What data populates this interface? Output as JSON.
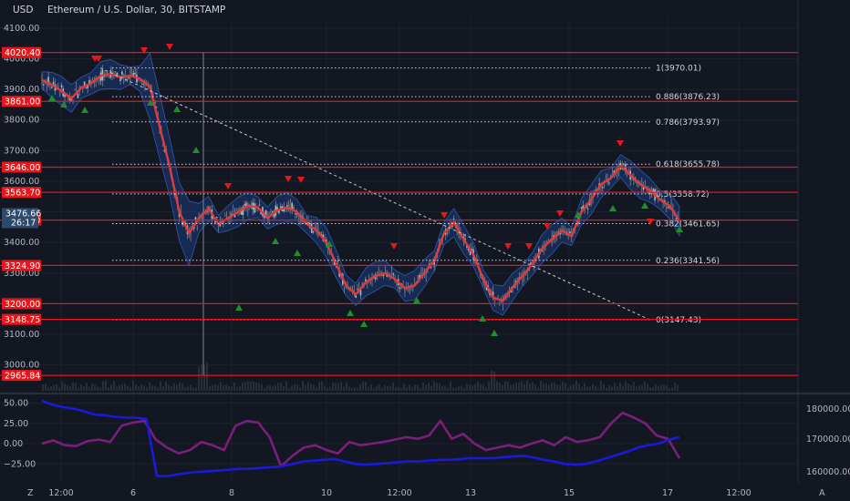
{
  "header": {
    "currency": "USD",
    "title": "Ethereum / U.S. Dollar, 30, BITSTAMP"
  },
  "chart_data": [
    {
      "type": "candlestick",
      "title": "Ethereum / U.S. Dollar, 30, BITSTAMP",
      "ylabel": "USD",
      "ylim": [
        2950,
        4120
      ],
      "y_ticks": [
        3000,
        3100,
        3200,
        3300,
        3400,
        3500,
        3600,
        3700,
        3800,
        3900,
        4000,
        4100
      ],
      "y_tick_labels": [
        "3000.00",
        "3100.00",
        "3200.00",
        "3300.00",
        "3400.00",
        "3500.00",
        "3600.00",
        "3700.00",
        "3800.00",
        "3900.00",
        "4000.00",
        "4100.00"
      ],
      "x_tick_labels": [
        "12:00",
        "6",
        "8",
        "10",
        "12:00",
        "13",
        "15",
        "17",
        "12:00"
      ],
      "current_price": {
        "value": "3476.66",
        "countdown": "26:17"
      },
      "horizontal_levels": [
        {
          "label": "4020.40",
          "value": 4020.4
        },
        {
          "label": "3861.00",
          "value": 3861.0
        },
        {
          "label": "3646.00",
          "value": 3646.0
        },
        {
          "label": "3563.70",
          "value": 3563.7
        },
        {
          "label": "3473.00",
          "value": 3473.0
        },
        {
          "label": "3324.90",
          "value": 3324.9
        },
        {
          "label": "3200.00",
          "value": 3200.0
        },
        {
          "label": "3148.75",
          "value": 3148.75
        },
        {
          "label": "2965.84",
          "value": 2965.84
        }
      ],
      "fibonacci": [
        {
          "label": "1(3970.01)",
          "value": 3970.01
        },
        {
          "label": "0.886(3876.23)",
          "value": 3876.23
        },
        {
          "label": "0.786(3793.97)",
          "value": 3793.97
        },
        {
          "label": "0.618(3655.78)",
          "value": 3655.78
        },
        {
          "label": "0.5(3558.72)",
          "value": 3558.72
        },
        {
          "label": "0.382(3461.65)",
          "value": 3461.65
        },
        {
          "label": "0.236(3341.56)",
          "value": 3341.56
        },
        {
          "label": "0(3147.43)",
          "value": 3147.43
        }
      ],
      "price_path": [
        3930,
        3915,
        3895,
        3870,
        3905,
        3920,
        3945,
        3950,
        3940,
        3945,
        3935,
        3910,
        3780,
        3650,
        3500,
        3430,
        3480,
        3510,
        3460,
        3480,
        3500,
        3520,
        3515,
        3480,
        3505,
        3515,
        3500,
        3460,
        3440,
        3400,
        3330,
        3260,
        3230,
        3270,
        3290,
        3300,
        3280,
        3250,
        3260,
        3300,
        3340,
        3430,
        3465,
        3410,
        3360,
        3280,
        3220,
        3210,
        3255,
        3290,
        3330,
        3380,
        3410,
        3440,
        3420,
        3500,
        3540,
        3590,
        3610,
        3650,
        3620,
        3590,
        3570,
        3540,
        3520,
        3470
      ],
      "colors": {
        "ma_line": "#e03b3b",
        "band_fill": "#1c3b7a",
        "level_line": "#e8161b",
        "trend_line": "#c8c8c8",
        "up_marker": "#1e8f2e",
        "down_marker": "#e8161b"
      }
    },
    {
      "type": "line",
      "title": "",
      "left_ticks": [
        50,
        25,
        0,
        -25
      ],
      "left_tick_labels": [
        "50.00",
        "25.00",
        "0.00",
        "−25.00"
      ],
      "right_ticks": [
        180000,
        170000,
        160000
      ],
      "right_tick_labels": [
        "180000.00",
        "170000.00",
        "160000.00"
      ],
      "series": [
        {
          "color": "#7a1f7a",
          "axis": "left",
          "values": [
            0,
            4,
            -2,
            -3,
            3,
            5,
            2,
            22,
            26,
            28,
            5,
            -5,
            -12,
            -8,
            2,
            -2,
            -8,
            22,
            28,
            26,
            8,
            -28,
            -15,
            -5,
            -2,
            -8,
            -12,
            2,
            -2,
            0,
            2,
            5,
            8,
            6,
            10,
            28,
            6,
            12,
            0,
            -8,
            -5,
            -2,
            -5,
            0,
            4,
            -2,
            8,
            2,
            4,
            8,
            25,
            38,
            32,
            25,
            10,
            6,
            -18
          ]
        },
        {
          "color": "#1a1ad8",
          "axis": "left",
          "values": [
            53,
            48,
            45,
            43,
            40,
            36,
            35,
            33,
            32,
            32,
            30,
            -40,
            -40,
            -38,
            -36,
            -35,
            -34,
            -33,
            -32,
            -31,
            -31,
            -30,
            -29,
            -28,
            -25,
            -22,
            -21,
            -20,
            -19,
            -22,
            -25,
            -26,
            -25,
            -24,
            -23,
            -22,
            -22,
            -21,
            -20,
            -20,
            -19,
            -18,
            -18,
            -18,
            -17,
            -16,
            -15,
            -17,
            -20,
            -22,
            -25,
            -26,
            -25,
            -22,
            -18,
            -14,
            -10,
            -5,
            -2,
            0,
            5,
            8
          ]
        }
      ]
    }
  ]
}
